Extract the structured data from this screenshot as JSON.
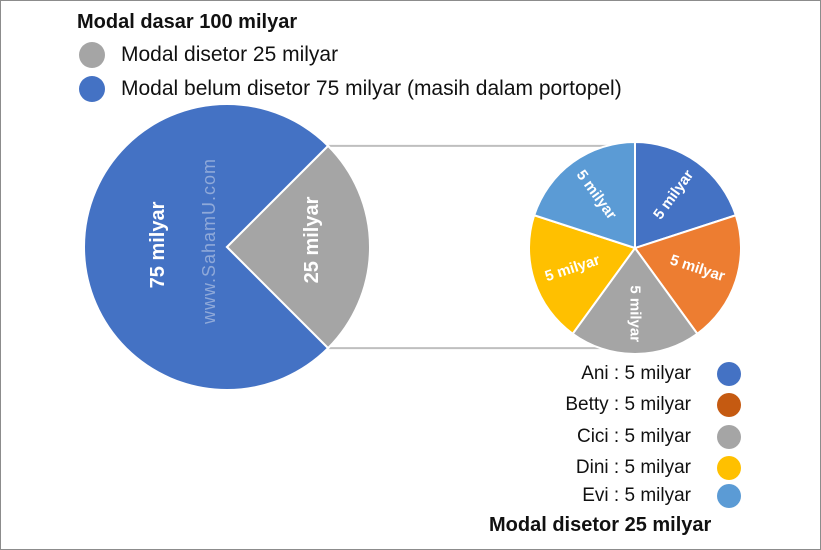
{
  "chart_data": [
    {
      "type": "pie",
      "title": "Modal dasar 100 milyar",
      "slices": [
        {
          "name": "Modal disetor 25 milyar",
          "value": 25,
          "label": "25 milyar",
          "color": "#A5A5A5"
        },
        {
          "name": "Modal belum disetor 75 milyar (masih dalam portopel)",
          "value": 75,
          "label": "75 milyar",
          "color": "#4472C4"
        }
      ]
    },
    {
      "type": "pie",
      "title": "Modal disetor 25 milyar",
      "slices": [
        {
          "name": "Ani : 5 milyar",
          "value": 5,
          "label": "5 milyar",
          "color": "#4472C4"
        },
        {
          "name": "Betty : 5 milyar",
          "value": 5,
          "label": "5 milyar",
          "color": "#ED7D31"
        },
        {
          "name": "Cici : 5 milyar",
          "value": 5,
          "label": "5 milyar",
          "color": "#A5A5A5"
        },
        {
          "name": "Dini : 5 milyar",
          "value": 5,
          "label": "5 milyar",
          "color": "#FFC000"
        },
        {
          "name": "Evi : 5 milyar",
          "value": 5,
          "label": "5 milyar",
          "color": "#5B9BD5"
        }
      ]
    }
  ],
  "owner_legend_colors": [
    "#4472C4",
    "#C55A11",
    "#A5A5A5",
    "#FFC000",
    "#5B9BD5"
  ],
  "watermark": "www.SahamU.com"
}
